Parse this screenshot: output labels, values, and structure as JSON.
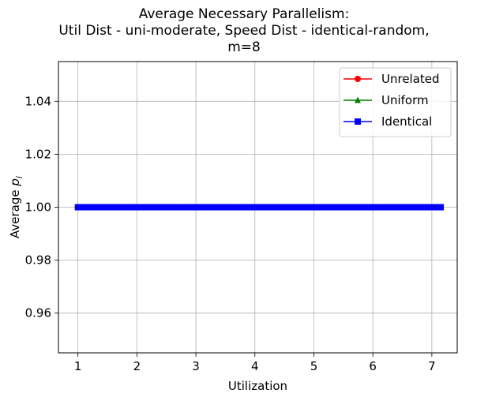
{
  "chart_data": {
    "type": "line",
    "title_lines": [
      "Average Necessary Parallelism:",
      "Util Dist - uni-moderate, Speed Dist - identical-random,",
      "m=8"
    ],
    "xlabel": "Utilization",
    "ylabel_prefix": "Average ",
    "ylabel_var": "p",
    "ylabel_sub": "i",
    "xlim": [
      0.67,
      7.43
    ],
    "ylim": [
      0.945,
      1.055
    ],
    "xticks": [
      1,
      2,
      3,
      4,
      5,
      6,
      7
    ],
    "yticks": [
      0.96,
      0.98,
      1.0,
      1.02,
      1.04
    ],
    "ytick_labels": [
      "0.96",
      "0.98",
      "1.00",
      "1.02",
      "1.04"
    ],
    "grid": true,
    "legend_position": "top-right",
    "x_start": 1.0,
    "x_end": 7.15,
    "x_step": 0.05,
    "series": [
      {
        "name": "Unrelated",
        "color": "#ff0000",
        "marker": "circle",
        "value": 1.0
      },
      {
        "name": "Uniform",
        "color": "#008000",
        "marker": "triangle",
        "value": 1.0
      },
      {
        "name": "Identical",
        "color": "#0000ff",
        "marker": "square",
        "value": 1.0
      }
    ]
  }
}
